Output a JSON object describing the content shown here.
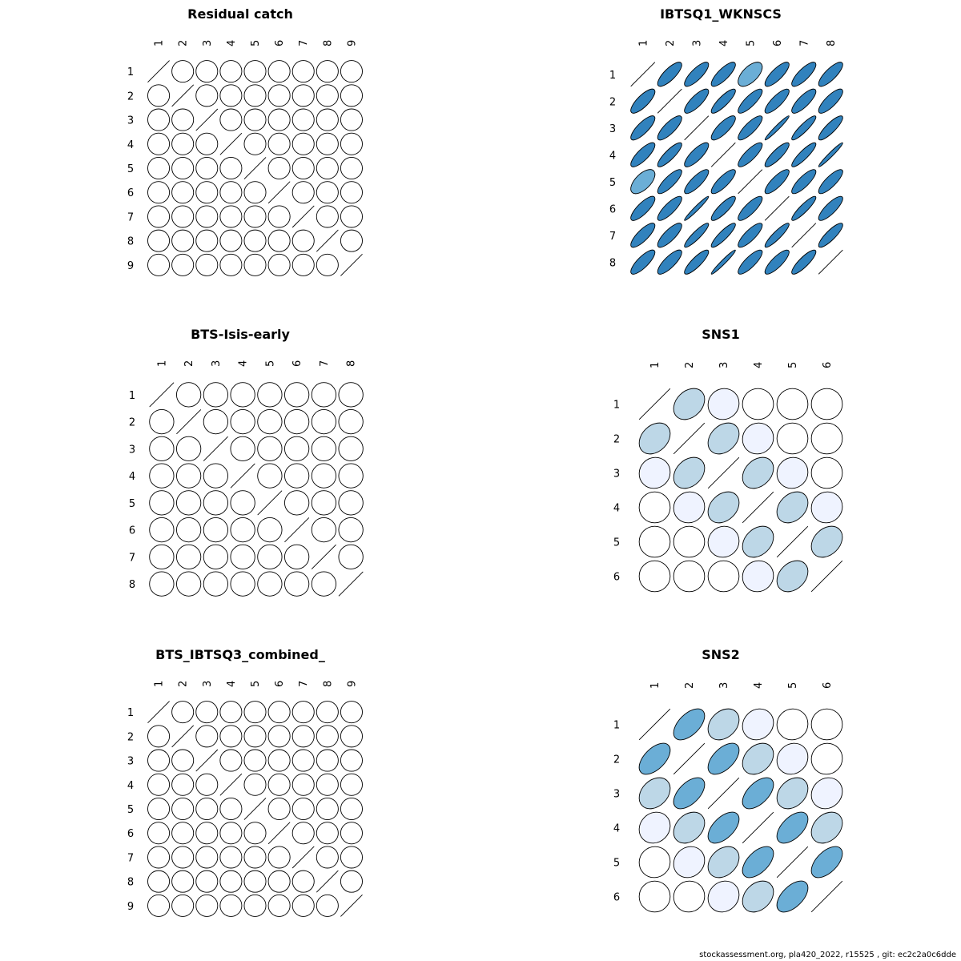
{
  "footer": "stockassessment.org, pla420_2022, r15525 , git: ec2c2a0c6dde",
  "colors": {
    "outline": "#000000",
    "palette": [
      "#ffffff",
      "#eff3ff",
      "#bdd7e7",
      "#6baed6",
      "#3182bd",
      "#08519c"
    ]
  },
  "chart_data": [
    {
      "type": "correlation-ellipse-matrix",
      "title": "Residual catch",
      "labels": [
        "1",
        "2",
        "3",
        "4",
        "5",
        "6",
        "7",
        "8",
        "9"
      ],
      "off_diagonal_correlation": 0
    },
    {
      "type": "correlation-ellipse-matrix",
      "title": "IBTSQ1_WKNSCS",
      "labels": [
        "1",
        "2",
        "3",
        "4",
        "5",
        "6",
        "7",
        "8"
      ],
      "matrix": [
        [
          1.0,
          0.78,
          0.8,
          0.8,
          0.6,
          0.8,
          0.8,
          0.8
        ],
        [
          0.78,
          1.0,
          0.8,
          0.85,
          0.82,
          0.82,
          0.8,
          0.8
        ],
        [
          0.8,
          0.8,
          1.0,
          0.8,
          0.82,
          0.97,
          0.9,
          0.85
        ],
        [
          0.8,
          0.85,
          0.8,
          1.0,
          0.82,
          0.85,
          0.88,
          0.97
        ],
        [
          0.6,
          0.82,
          0.82,
          0.82,
          1.0,
          0.82,
          0.82,
          0.82
        ],
        [
          0.8,
          0.82,
          0.97,
          0.85,
          0.82,
          1.0,
          0.9,
          0.82
        ],
        [
          0.8,
          0.8,
          0.9,
          0.88,
          0.82,
          0.9,
          1.0,
          0.85
        ],
        [
          0.8,
          0.8,
          0.85,
          0.97,
          0.82,
          0.82,
          0.85,
          1.0
        ]
      ]
    },
    {
      "type": "correlation-ellipse-matrix",
      "title": "BTS-Isis-early",
      "labels": [
        "1",
        "2",
        "3",
        "4",
        "5",
        "6",
        "7",
        "8"
      ],
      "off_diagonal_correlation": 0
    },
    {
      "type": "correlation-ellipse-matrix",
      "title": "SNS1",
      "labels": [
        "1",
        "2",
        "3",
        "4",
        "5",
        "6"
      ],
      "matrix": [
        [
          1.0,
          0.3,
          0.05,
          0.0,
          0.0,
          0.0
        ],
        [
          0.3,
          1.0,
          0.3,
          0.05,
          0.0,
          0.0
        ],
        [
          0.05,
          0.3,
          1.0,
          0.3,
          0.05,
          0.0
        ],
        [
          0.0,
          0.05,
          0.3,
          1.0,
          0.3,
          0.05
        ],
        [
          0.0,
          0.0,
          0.05,
          0.3,
          1.0,
          0.3
        ],
        [
          0.0,
          0.0,
          0.0,
          0.05,
          0.3,
          1.0
        ]
      ]
    },
    {
      "type": "correlation-ellipse-matrix",
      "title": "BTS_IBTSQ3_combined_",
      "labels": [
        "1",
        "2",
        "3",
        "4",
        "5",
        "6",
        "7",
        "8",
        "9"
      ],
      "off_diagonal_correlation": 0
    },
    {
      "type": "correlation-ellipse-matrix",
      "title": "SNS2",
      "labels": [
        "1",
        "2",
        "3",
        "4",
        "5",
        "6"
      ],
      "matrix": [
        [
          1.0,
          0.55,
          0.3,
          0.12,
          0.03,
          0.0
        ],
        [
          0.55,
          1.0,
          0.55,
          0.3,
          0.12,
          0.03
        ],
        [
          0.3,
          0.55,
          1.0,
          0.55,
          0.3,
          0.12
        ],
        [
          0.12,
          0.3,
          0.55,
          1.0,
          0.55,
          0.3
        ],
        [
          0.03,
          0.12,
          0.3,
          0.55,
          1.0,
          0.55
        ],
        [
          0.0,
          0.03,
          0.12,
          0.3,
          0.55,
          1.0
        ]
      ]
    }
  ]
}
